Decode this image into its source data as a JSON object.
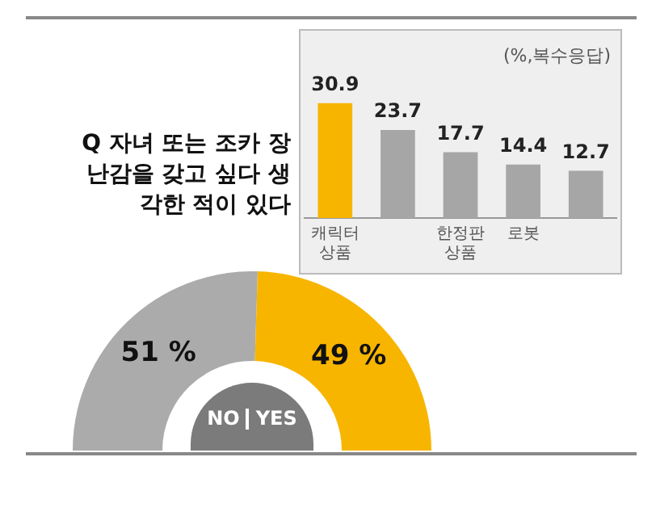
{
  "chart_data": [
    {
      "type": "bar",
      "subtitle": "(%,복수응답)",
      "categories": [
        "캐릭터 상품",
        null,
        "한정판 상품",
        "로봇",
        null
      ],
      "values": [
        30.9,
        23.7,
        17.7,
        14.4,
        12.7
      ],
      "colors": [
        "#f7b500",
        "#a6a6a6",
        "#a6a6a6",
        "#a6a6a6",
        "#a6a6a6"
      ],
      "data_labels": true,
      "tick_labels": "x",
      "grid": false,
      "legend": false
    },
    {
      "type": "donut",
      "title": "Q 자녀 또는 조카 장난감을 갖고 싶다 생각한 적이 있다",
      "categories": [
        "NO",
        "YES"
      ],
      "values": [
        51,
        49
      ],
      "colors": [
        "#ababab",
        "#f7b500"
      ],
      "value_labels": [
        "51 %",
        "49 %"
      ],
      "legend": false
    }
  ]
}
